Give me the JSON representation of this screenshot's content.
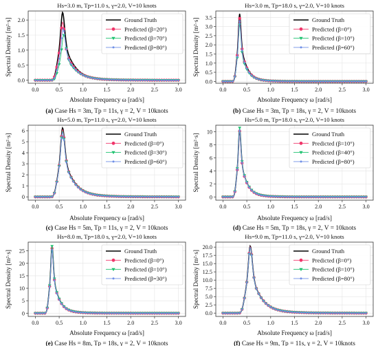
{
  "colors": {
    "ground_truth": "#000000",
    "series_2": "#f0356a",
    "series_3": "#1fc270",
    "series_4": "#6f8fe6"
  },
  "chart_data": [
    {
      "type": "line",
      "title": "Hs=3.0 m, Tp=11.0 s, γ=2.0, V=10 knots",
      "caption_letter": "(a)",
      "caption": "Case Hs = 3m, Tp = 11s, γ = 2, V = 10knots",
      "xlabel": "Absolute Frequency ω [rad/s]",
      "ylabel": "Spectral Density [m²·s]",
      "xlim": [
        -0.15,
        3.15
      ],
      "ylim": [
        -0.1,
        2.3
      ],
      "xticks": [
        0.0,
        0.5,
        1.0,
        1.5,
        2.0,
        2.5,
        3.0
      ],
      "yticks": [
        0.0,
        0.5,
        1.0,
        1.5,
        2.0
      ],
      "grid": true,
      "legend": "top-right",
      "peak_x": 0.571,
      "peak": 2.25,
      "gamma": 2.0,
      "series": [
        {
          "name": "Ground Truth",
          "peak": 2.25,
          "shift": 0.0
        },
        {
          "name": "Predicted (β=20°)",
          "peak": 1.93,
          "shift": 0.0
        },
        {
          "name": "Predicted (β=70°)",
          "peak": 1.5,
          "shift": 0.025
        },
        {
          "name": "Predicted (β=80°)",
          "peak": 1.72,
          "shift": 0.01
        }
      ]
    },
    {
      "type": "line",
      "title": "Hs=3.0 m, Tp=18.0 s, γ=2.0, V=10 knots",
      "caption_letter": "(b)",
      "caption": "Case Hs = 3m, Tp = 18s, γ = 2, V = 10knots",
      "xlabel": "Absolute Frequency ω [rad/s]",
      "ylabel": "Spectral Density [m²·s]",
      "xlim": [
        -0.15,
        3.15
      ],
      "ylim": [
        -0.1,
        3.85
      ],
      "xticks": [
        0.0,
        0.5,
        1.0,
        1.5,
        2.0,
        2.5,
        3.0
      ],
      "yticks": [
        0.0,
        0.5,
        1.0,
        1.5,
        2.0,
        2.5,
        3.0,
        3.5
      ],
      "grid": true,
      "legend": "top-right",
      "peak_x": 0.349,
      "peak": 3.7,
      "gamma": 2.0,
      "series": [
        {
          "name": "Ground Truth",
          "peak": 3.7,
          "shift": 0.0
        },
        {
          "name": "Predicted (β=0°)",
          "peak": 3.45,
          "shift": 0.0
        },
        {
          "name": "Predicted (β=10°)",
          "peak": 3.1,
          "shift": 0.0
        },
        {
          "name": "Predicted (β=60°)",
          "peak": 3.3,
          "shift": 0.0
        }
      ]
    },
    {
      "type": "line",
      "title": "Hs=5.0 m, Tp=11.0 s, γ=2.0, V=10 knots",
      "caption_letter": "(c)",
      "caption": "Case Hs = 5m, Tp = 11s, γ = 2, V = 10knots",
      "xlabel": "Absolute Frequency ω [rad/s]",
      "ylabel": "Spectral Density [m²·s]",
      "xlim": [
        -0.15,
        3.15
      ],
      "ylim": [
        -0.3,
        6.5
      ],
      "xticks": [
        0.0,
        0.5,
        1.0,
        1.5,
        2.0,
        2.5,
        3.0
      ],
      "yticks": [
        0,
        1,
        2,
        3,
        4,
        5,
        6
      ],
      "grid": true,
      "legend": "top-right",
      "peak_x": 0.571,
      "peak": 6.25,
      "gamma": 2.0,
      "series": [
        {
          "name": "Ground Truth",
          "peak": 6.25,
          "shift": 0.0
        },
        {
          "name": "Predicted (β=0°)",
          "peak": 6.1,
          "shift": 0.0
        },
        {
          "name": "Predicted (β=30°)",
          "peak": 5.95,
          "shift": 0.0
        },
        {
          "name": "Predicted (β=60°)",
          "peak": 5.85,
          "shift": 0.0
        }
      ]
    },
    {
      "type": "line",
      "title": "Hs=5.0 m, Tp=18.0 s, γ=2.0, V=10 knots",
      "caption_letter": "(d)",
      "caption": "Case Hs = 5m, Tp = 18s, γ = 2, V = 10knots",
      "xlabel": "Absolute Frequency ω [rad/s]",
      "ylabel": "Spectral Density [m²·s]",
      "xlim": [
        -0.15,
        3.15
      ],
      "ylim": [
        -0.5,
        11.0
      ],
      "xticks": [
        0.0,
        0.5,
        1.0,
        1.5,
        2.0,
        2.5,
        3.0
      ],
      "yticks": [
        0,
        2,
        4,
        6,
        8,
        10
      ],
      "grid": true,
      "legend": "top-right",
      "peak_x": 0.349,
      "peak": 10.4,
      "gamma": 2.0,
      "series": [
        {
          "name": "Ground Truth",
          "peak": 10.4,
          "shift": 0.0
        },
        {
          "name": "Predicted (β=10°)",
          "peak": 10.1,
          "shift": 0.0
        },
        {
          "name": "Predicted (β=40°)",
          "peak": 10.6,
          "shift": 0.0
        },
        {
          "name": "Predicted (β=80°)",
          "peak": 10.2,
          "shift": 0.0
        }
      ]
    },
    {
      "type": "line",
      "title": "Hs=8.0 m, Tp=18.0 s, γ=2.0, V=10 knots",
      "caption_letter": "(e)",
      "caption": "Case Hs = 8m, Tp = 18s, γ = 2, V = 10knots",
      "xlabel": "Absolute Frequency ω [rad/s]",
      "ylabel": "Spectral Density [m²·s]",
      "xlim": [
        -0.15,
        3.15
      ],
      "ylim": [
        -1.3,
        28.5
      ],
      "xticks": [
        0.0,
        0.5,
        1.0,
        1.5,
        2.0,
        2.5,
        3.0
      ],
      "yticks": [
        0,
        5,
        10,
        15,
        20,
        25
      ],
      "grid": true,
      "legend": "top-right",
      "peak_x": 0.349,
      "peak": 26.8,
      "gamma": 2.0,
      "series": [
        {
          "name": "Ground Truth",
          "peak": 26.8,
          "shift": 0.0
        },
        {
          "name": "Predicted (β=0°)",
          "peak": 26.0,
          "shift": 0.0
        },
        {
          "name": "Predicted (β=10°)",
          "peak": 26.9,
          "shift": 0.0
        },
        {
          "name": "Predicted (β=30°)",
          "peak": 25.4,
          "shift": 0.0
        }
      ]
    },
    {
      "type": "line",
      "title": "Hs=9.0 m, Tp=11.0 s, γ=2.0, V=10 knots",
      "caption_letter": "(f)",
      "caption": "Case Hs = 9m, Tp = 11s, γ = 2, V = 10knots",
      "xlabel": "Absolute Frequency ω [rad/s]",
      "ylabel": "Spectral Density [m²·s]",
      "xlim": [
        -0.15,
        3.15
      ],
      "ylim": [
        -1.0,
        21.5
      ],
      "xticks": [
        0.0,
        0.5,
        1.0,
        1.5,
        2.0,
        2.5,
        3.0
      ],
      "yticks": [
        0.0,
        2.5,
        5.0,
        7.5,
        10.0,
        12.5,
        15.0,
        17.5,
        20.0
      ],
      "grid": true,
      "legend": "top-right",
      "peak_x": 0.571,
      "peak": 20.3,
      "gamma": 2.0,
      "series": [
        {
          "name": "Ground Truth",
          "peak": 20.3,
          "shift": 0.0
        },
        {
          "name": "Predicted (β=0°)",
          "peak": 20.1,
          "shift": 0.0
        },
        {
          "name": "Predicted (β=10°)",
          "peak": 19.8,
          "shift": 0.0
        },
        {
          "name": "Predicted (β=80°)",
          "peak": 19.9,
          "shift": 0.0
        }
      ]
    }
  ]
}
